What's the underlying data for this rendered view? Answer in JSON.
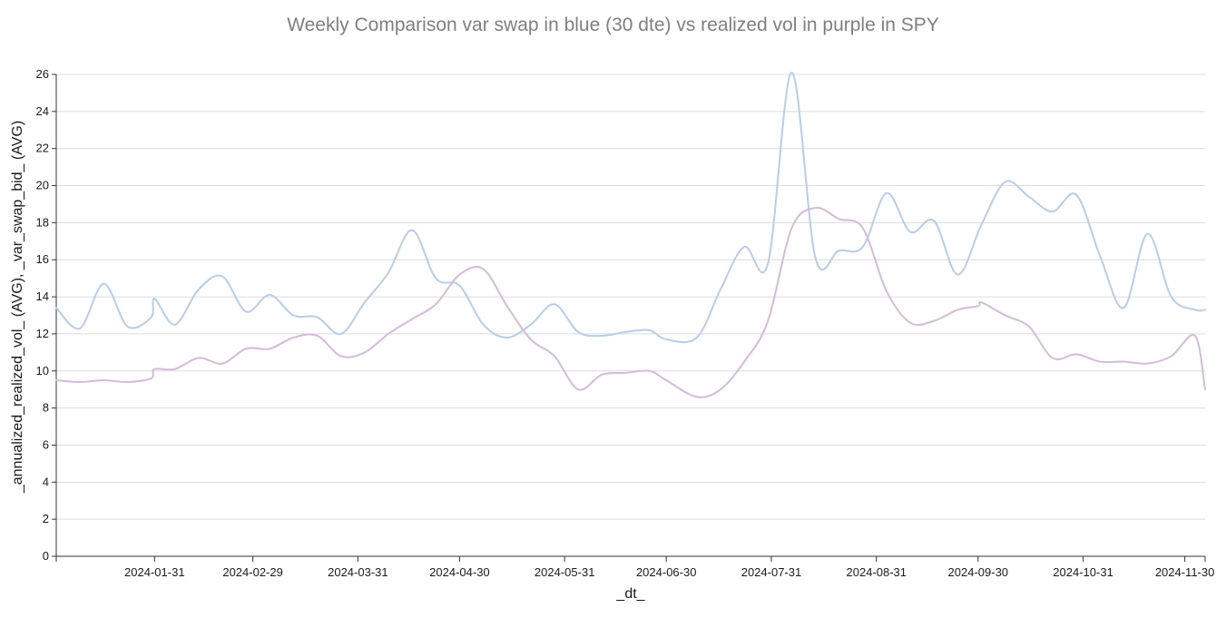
{
  "chart_data": {
    "type": "line",
    "title": "Weekly Comparison var swap in blue (30 dte) vs realized vol in purple in SPY",
    "xlabel": "_dt_",
    "ylabel": "_annualized_realized_vol_ (AVG), _var_swap_bid_ (AVG)",
    "xlim": [
      "2024-01-02",
      "2024-12-06"
    ],
    "ylim": [
      0,
      26
    ],
    "y_ticks": [
      0,
      2,
      4,
      6,
      8,
      10,
      12,
      14,
      16,
      18,
      20,
      22,
      24,
      26
    ],
    "x_ticks": [
      "2024-01-31",
      "2024-02-29",
      "2024-03-31",
      "2024-04-30",
      "2024-05-31",
      "2024-06-30",
      "2024-07-31",
      "2024-08-31",
      "2024-09-30",
      "2024-10-31",
      "2024-11-30"
    ],
    "grid": "horizontal",
    "series": [
      {
        "color": "#b8cde6",
        "points": [
          [
            "2024-01-02",
            13.4
          ],
          [
            "2024-01-09",
            12.3
          ],
          [
            "2024-01-16",
            14.7
          ],
          [
            "2024-01-23",
            12.4
          ],
          [
            "2024-01-30",
            12.9
          ],
          [
            "2024-01-31",
            13.9
          ],
          [
            "2024-02-06",
            12.5
          ],
          [
            "2024-02-13",
            14.4
          ],
          [
            "2024-02-20",
            15.1
          ],
          [
            "2024-02-27",
            13.2
          ],
          [
            "2024-03-05",
            14.1
          ],
          [
            "2024-03-12",
            13.0
          ],
          [
            "2024-03-19",
            12.9
          ],
          [
            "2024-03-26",
            12.0
          ],
          [
            "2024-04-02",
            13.7
          ],
          [
            "2024-04-09",
            15.3
          ],
          [
            "2024-04-16",
            17.6
          ],
          [
            "2024-04-23",
            15.0
          ],
          [
            "2024-04-30",
            14.6
          ],
          [
            "2024-05-07",
            12.5
          ],
          [
            "2024-05-14",
            11.8
          ],
          [
            "2024-05-21",
            12.5
          ],
          [
            "2024-05-28",
            13.6
          ],
          [
            "2024-06-04",
            12.1
          ],
          [
            "2024-06-11",
            11.9
          ],
          [
            "2024-06-18",
            12.1
          ],
          [
            "2024-06-25",
            12.2
          ],
          [
            "2024-06-30",
            11.7
          ],
          [
            "2024-07-09",
            11.8
          ],
          [
            "2024-07-16",
            14.4
          ],
          [
            "2024-07-23",
            16.7
          ],
          [
            "2024-07-30",
            15.8
          ],
          [
            "2024-08-06",
            26.1
          ],
          [
            "2024-08-13",
            16.1
          ],
          [
            "2024-08-20",
            16.5
          ],
          [
            "2024-08-27",
            16.7
          ],
          [
            "2024-09-03",
            19.6
          ],
          [
            "2024-09-10",
            17.5
          ],
          [
            "2024-09-17",
            18.1
          ],
          [
            "2024-09-24",
            15.2
          ],
          [
            "2024-10-01",
            17.9
          ],
          [
            "2024-10-08",
            20.2
          ],
          [
            "2024-10-15",
            19.4
          ],
          [
            "2024-10-22",
            18.6
          ],
          [
            "2024-10-29",
            19.5
          ],
          [
            "2024-11-05",
            16.2
          ],
          [
            "2024-11-12",
            13.4
          ],
          [
            "2024-11-19",
            17.4
          ],
          [
            "2024-11-26",
            14.0
          ],
          [
            "2024-12-03",
            13.3
          ],
          [
            "2024-12-06",
            13.3
          ]
        ]
      },
      {
        "color": "#d3bcd9",
        "points": [
          [
            "2024-01-02",
            9.5
          ],
          [
            "2024-01-09",
            9.4
          ],
          [
            "2024-01-16",
            9.5
          ],
          [
            "2024-01-23",
            9.4
          ],
          [
            "2024-01-30",
            9.6
          ],
          [
            "2024-01-31",
            10.1
          ],
          [
            "2024-02-06",
            10.1
          ],
          [
            "2024-02-13",
            10.7
          ],
          [
            "2024-02-20",
            10.4
          ],
          [
            "2024-02-27",
            11.2
          ],
          [
            "2024-03-05",
            11.2
          ],
          [
            "2024-03-12",
            11.8
          ],
          [
            "2024-03-19",
            11.9
          ],
          [
            "2024-03-26",
            10.8
          ],
          [
            "2024-04-02",
            11.0
          ],
          [
            "2024-04-09",
            12.0
          ],
          [
            "2024-04-16",
            12.8
          ],
          [
            "2024-04-23",
            13.6
          ],
          [
            "2024-04-30",
            15.2
          ],
          [
            "2024-05-07",
            15.5
          ],
          [
            "2024-05-14",
            13.5
          ],
          [
            "2024-05-21",
            11.7
          ],
          [
            "2024-05-28",
            10.8
          ],
          [
            "2024-06-04",
            9.0
          ],
          [
            "2024-06-11",
            9.8
          ],
          [
            "2024-06-18",
            9.9
          ],
          [
            "2024-06-25",
            10.0
          ],
          [
            "2024-06-30",
            9.5
          ],
          [
            "2024-07-09",
            8.6
          ],
          [
            "2024-07-16",
            9.0
          ],
          [
            "2024-07-23",
            10.5
          ],
          [
            "2024-07-30",
            12.7
          ],
          [
            "2024-08-06",
            17.7
          ],
          [
            "2024-08-13",
            18.8
          ],
          [
            "2024-08-20",
            18.2
          ],
          [
            "2024-08-27",
            17.7
          ],
          [
            "2024-09-03",
            14.3
          ],
          [
            "2024-09-10",
            12.6
          ],
          [
            "2024-09-17",
            12.7
          ],
          [
            "2024-09-24",
            13.3
          ],
          [
            "2024-09-30",
            13.5
          ],
          [
            "2024-10-01",
            13.7
          ],
          [
            "2024-10-08",
            13.0
          ],
          [
            "2024-10-15",
            12.4
          ],
          [
            "2024-10-22",
            10.7
          ],
          [
            "2024-10-29",
            10.9
          ],
          [
            "2024-11-05",
            10.5
          ],
          [
            "2024-11-12",
            10.5
          ],
          [
            "2024-11-19",
            10.4
          ],
          [
            "2024-11-26",
            10.8
          ],
          [
            "2024-12-03",
            11.9
          ],
          [
            "2024-12-06",
            9.0
          ]
        ]
      }
    ]
  }
}
